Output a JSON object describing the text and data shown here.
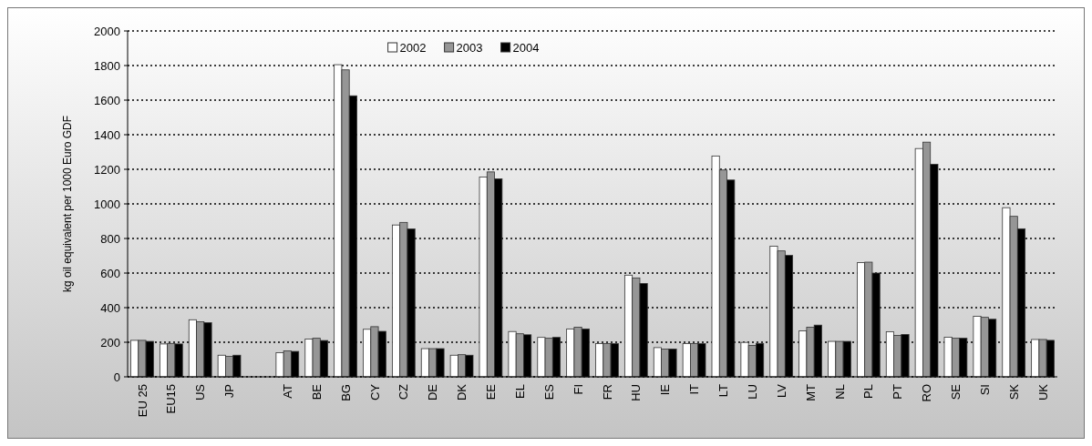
{
  "chart_data": {
    "type": "bar",
    "ylabel": "kg oil equivalent per 1000 Euro GDF",
    "categories": [
      "EU 25",
      "EU15",
      "US",
      "JP",
      null,
      "AT",
      "BE",
      "BG",
      "CY",
      "CZ",
      "DE",
      "DK",
      "EE",
      "EL",
      "ES",
      "FI",
      "FR",
      "HU",
      "IE",
      "IT",
      "LT",
      "LU",
      "LV",
      "MT",
      "NL",
      "PL",
      "PT",
      "RO",
      "SE",
      "SI",
      "SK",
      "UK"
    ],
    "series": [
      {
        "name": "2002",
        "color": "#ffffff",
        "values": [
          211,
          190,
          330,
          125,
          null,
          140,
          218,
          1805,
          275,
          878,
          163,
          125,
          1155,
          262,
          228,
          277,
          192,
          588,
          169,
          192,
          1277,
          199,
          755,
          266,
          205,
          660,
          261,
          1320,
          229,
          350,
          978,
          216
        ]
      },
      {
        "name": "2003",
        "color": "#969696",
        "values": [
          211,
          193,
          318,
          118,
          null,
          150,
          223,
          1775,
          290,
          893,
          163,
          128,
          1185,
          249,
          223,
          287,
          192,
          572,
          161,
          192,
          1196,
          181,
          728,
          287,
          205,
          663,
          240,
          1357,
          223,
          344,
          928,
          216
        ]
      },
      {
        "name": "2004",
        "color": "#000000",
        "values": [
          205,
          190,
          313,
          125,
          null,
          147,
          210,
          1625,
          263,
          855,
          163,
          125,
          1145,
          243,
          228,
          277,
          192,
          540,
          161,
          192,
          1138,
          193,
          702,
          299,
          205,
          600,
          245,
          1229,
          223,
          333,
          856,
          211
        ]
      }
    ],
    "ylim": [
      0,
      2000
    ],
    "yticks": [
      0,
      200,
      400,
      600,
      800,
      1000,
      1200,
      1400,
      1600,
      1800,
      2000
    ],
    "grid": "y",
    "legend": "top"
  }
}
